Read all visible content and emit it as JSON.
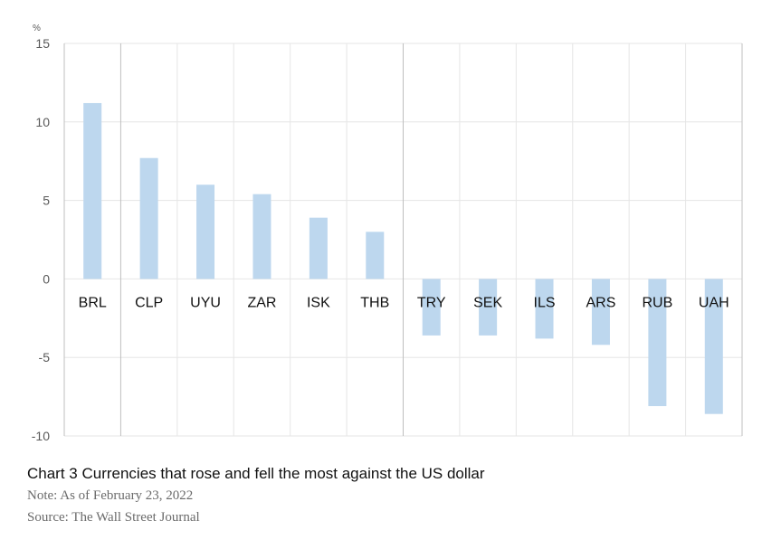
{
  "chart_data": {
    "type": "bar",
    "title": "Chart 3 Currencies that rose and fell the most against the US dollar",
    "note": "Note: As of February 23, 2022",
    "source": "Source: The Wall Street Journal",
    "ylabel": "%",
    "xlabel": "",
    "ylim": [
      -10,
      15
    ],
    "yticks": [
      15,
      10,
      5,
      0,
      -5,
      -10
    ],
    "ytick_labels": [
      "15",
      "10",
      "5",
      "0",
      "-5",
      "-10"
    ],
    "categories": [
      "BRL",
      "CLP",
      "UYU",
      "ZAR",
      "ISK",
      "THB",
      "TRY",
      "SEK",
      "ILS",
      "ARS",
      "RUB",
      "UAH"
    ],
    "values": [
      11.2,
      7.7,
      6.0,
      5.4,
      3.9,
      3.0,
      -3.6,
      -3.6,
      -3.8,
      -4.2,
      -8.1,
      -8.6
    ],
    "grid": true,
    "legend": "none",
    "bar_color": "#bdd7ee",
    "grid_color": "#e6e6e6",
    "divider_color": "#bfbfbf",
    "dividers_after_index": [
      0,
      5,
      11
    ]
  }
}
